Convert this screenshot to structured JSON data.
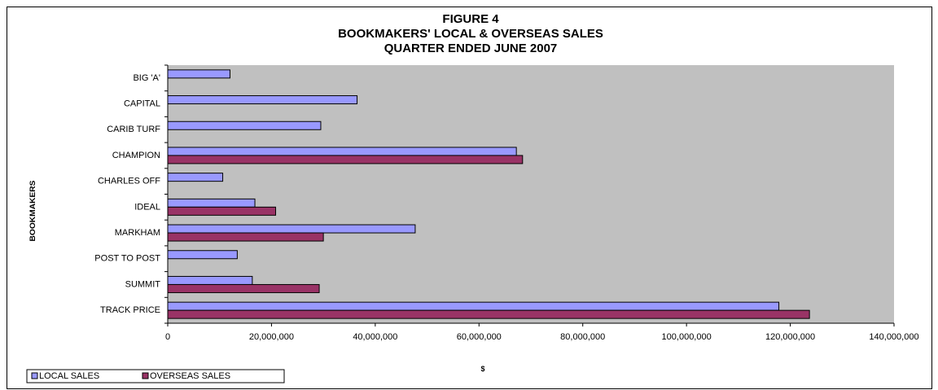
{
  "chart_data": {
    "type": "bar",
    "orientation": "horizontal",
    "title_lines": [
      "FIGURE 4",
      "BOOKMAKERS' LOCAL & OVERSEAS SALES",
      "QUARTER ENDED JUNE 2007"
    ],
    "xlabel": "$",
    "ylabel": "BOOKMAKERS",
    "xlim": [
      0,
      140000000
    ],
    "x_ticks": [
      0,
      20000000,
      40000000,
      60000000,
      80000000,
      100000000,
      120000000,
      140000000
    ],
    "x_tick_labels": [
      "0",
      "20,000,000",
      "40,000,000",
      "60,000,000",
      "80,000,000",
      "100,000,000",
      "120,000,000",
      "140,000,000"
    ],
    "categories": [
      "BIG 'A'",
      "CAPITAL",
      "CARIB TURF",
      "CHAMPION",
      "CHARLES OFF",
      "IDEAL",
      "MARKHAM",
      "POST TO POST",
      "SUMMIT",
      "TRACK PRICE"
    ],
    "series": [
      {
        "name": "LOCAL SALES",
        "color": "#9999ff",
        "values": [
          12000000,
          36500000,
          29500000,
          67200000,
          10600000,
          16800000,
          47700000,
          13400000,
          16300000,
          117800000
        ]
      },
      {
        "name": "OVERSEAS SALES",
        "color": "#993366",
        "values": [
          0,
          0,
          0,
          68400000,
          0,
          20800000,
          30000000,
          0,
          29200000,
          123700000
        ]
      }
    ],
    "legend_position": "bottom-left",
    "grid": false,
    "plot_background": "#c0c0c0"
  }
}
